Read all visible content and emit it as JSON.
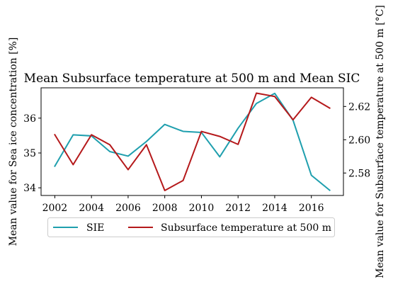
{
  "chart_data": {
    "type": "line",
    "title": "Mean Subsurface temperature at 500 m and Mean SIC",
    "xlabel": "",
    "ylabel_left": "Mean value for Sea ice concentration [%]",
    "ylabel_right": "Mean value for Subsurface temperature at 500 m [°C]",
    "x": [
      2002,
      2003,
      2004,
      2005,
      2006,
      2007,
      2008,
      2009,
      2010,
      2011,
      2012,
      2013,
      2014,
      2015,
      2016,
      2017
    ],
    "x_ticks": [
      2002,
      2004,
      2006,
      2008,
      2010,
      2012,
      2014,
      2016
    ],
    "x_tick_labels": [
      "2002",
      "2004",
      "2006",
      "2008",
      "2010",
      "2012",
      "2014",
      "2016"
    ],
    "xlim": [
      2001.25,
      2017.75
    ],
    "y_left_ticks": [
      34,
      35,
      36
    ],
    "y_left_tick_labels": [
      "34",
      "35",
      "36"
    ],
    "ylim_left": [
      33.78,
      36.87
    ],
    "y_right_ticks": [
      2.58,
      2.6,
      2.62
    ],
    "y_right_tick_labels": [
      "2.58",
      "2.60",
      "2.62"
    ],
    "ylim_right": [
      2.5665,
      2.6312
    ],
    "grid": false,
    "legend_placement": "below plot",
    "series": [
      {
        "name": "SIE",
        "axis": "left",
        "color": "#1f9fae",
        "values": [
          34.62,
          35.52,
          35.49,
          35.04,
          34.91,
          35.33,
          35.82,
          35.62,
          35.59,
          34.89,
          35.71,
          36.42,
          36.71,
          35.94,
          34.36,
          33.93
        ]
      },
      {
        "name": "Subsurface temperature at 500 m",
        "axis": "right",
        "color": "#b5191b",
        "values": [
          2.603,
          2.585,
          2.603,
          2.597,
          2.582,
          2.597,
          2.5695,
          2.5755,
          2.605,
          2.602,
          2.5972,
          2.628,
          2.626,
          2.612,
          2.6255,
          2.619
        ]
      }
    ]
  }
}
